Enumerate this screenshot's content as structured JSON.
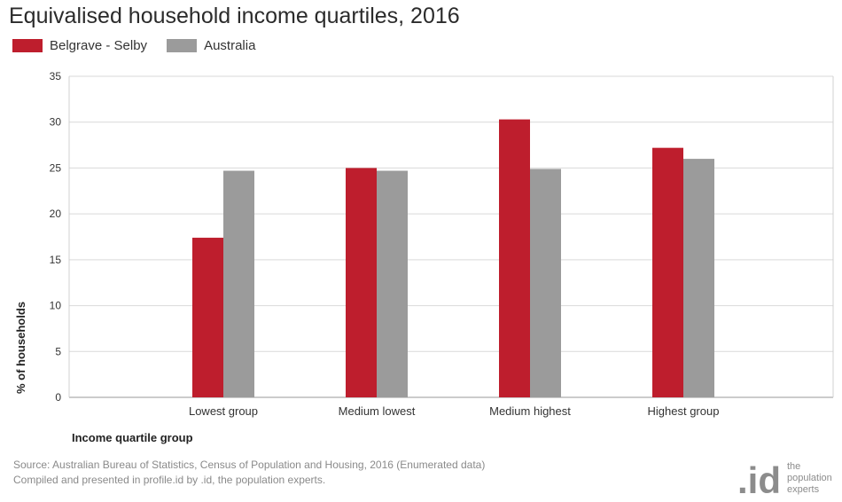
{
  "title": "Equivalised household income quartiles, 2016",
  "legend": [
    {
      "name": "Belgrave - Selby",
      "color": "#BE1E2D"
    },
    {
      "name": "Australia",
      "color": "#9B9B9B"
    }
  ],
  "source": {
    "line1": "Source: Australian Bureau of Statistics, Census of Population and Housing, 2016 (Enumerated data)",
    "line2": "Compiled and presented in profile.id by .id, the population experts."
  },
  "logo": {
    "mark": ".id",
    "line1": "the",
    "line2": "population",
    "line3": "experts"
  },
  "chart_data": {
    "type": "bar",
    "title": "Equivalised household income quartiles, 2016",
    "xlabel": "Income quartile group",
    "ylabel": "% of households",
    "categories": [
      "Lowest group",
      "Medium lowest",
      "Medium highest",
      "Highest group"
    ],
    "series": [
      {
        "name": "Belgrave - Selby",
        "color": "#BE1E2D",
        "values": [
          17.4,
          25.0,
          30.3,
          27.2
        ]
      },
      {
        "name": "Australia",
        "color": "#9B9B9B",
        "values": [
          24.7,
          24.7,
          24.9,
          26.0
        ]
      }
    ],
    "ylim": [
      0,
      35
    ],
    "yticks": [
      0,
      5,
      10,
      15,
      20,
      25,
      30,
      35
    ],
    "grid": true,
    "legend_position": "top-left"
  }
}
